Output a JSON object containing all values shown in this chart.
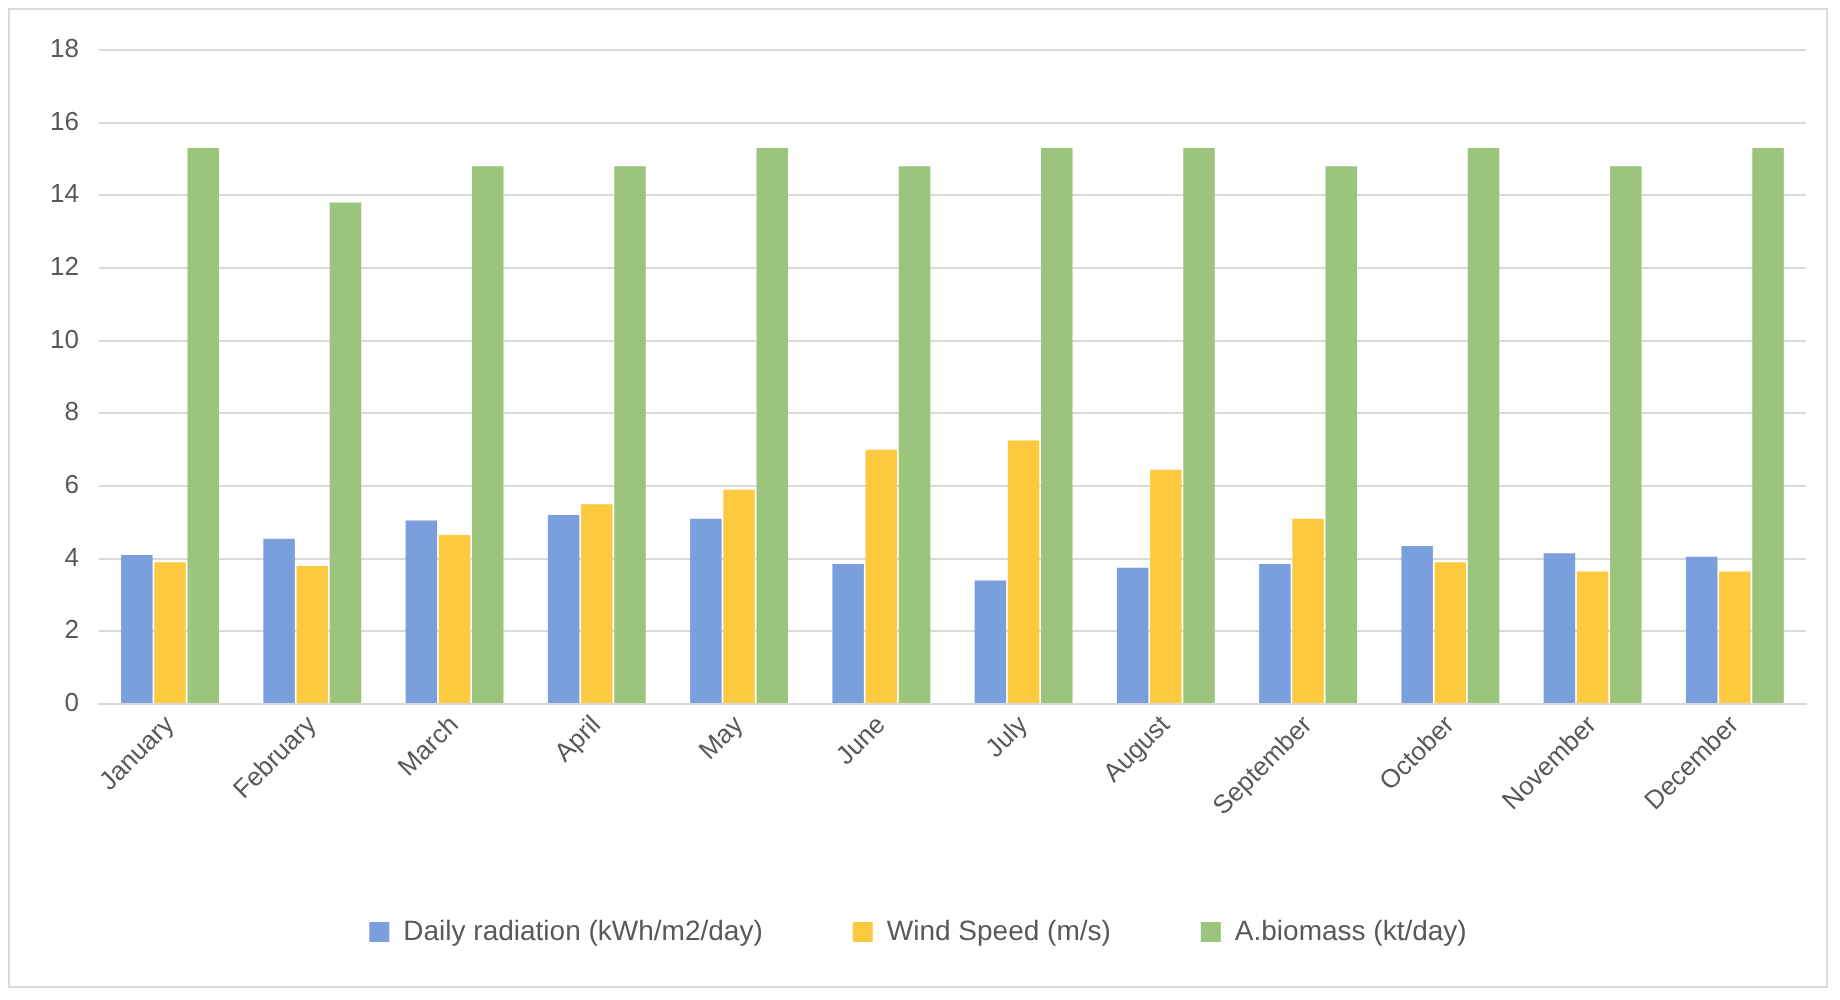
{
  "chart_data": {
    "type": "bar",
    "categories": [
      "January",
      "February",
      "March",
      "April",
      "May",
      "June",
      "July",
      "August",
      "September",
      "October",
      "November",
      "December"
    ],
    "series": [
      {
        "name": "Daily radiation (kWh/m2/day)",
        "color": "#7b9fdc",
        "values": [
          4.1,
          4.55,
          5.05,
          5.2,
          5.1,
          3.85,
          3.4,
          3.75,
          3.85,
          4.35,
          4.15,
          4.05
        ]
      },
      {
        "name": "Wind Speed (m/s)",
        "color": "#fdc93e",
        "values": [
          3.9,
          3.8,
          4.65,
          5.5,
          5.9,
          7.0,
          7.25,
          6.45,
          5.1,
          3.9,
          3.65,
          3.65
        ]
      },
      {
        "name": "A.biomass (kt/day)",
        "color": "#9bc57c",
        "values": [
          15.3,
          13.8,
          14.8,
          14.8,
          15.3,
          14.8,
          15.3,
          15.3,
          14.8,
          15.3,
          14.8,
          15.3
        ]
      }
    ],
    "ylim": [
      0,
      18
    ],
    "yticks": [
      0,
      2,
      4,
      6,
      8,
      10,
      12,
      14,
      16,
      18
    ],
    "grid": "y",
    "legend": "bottom"
  }
}
